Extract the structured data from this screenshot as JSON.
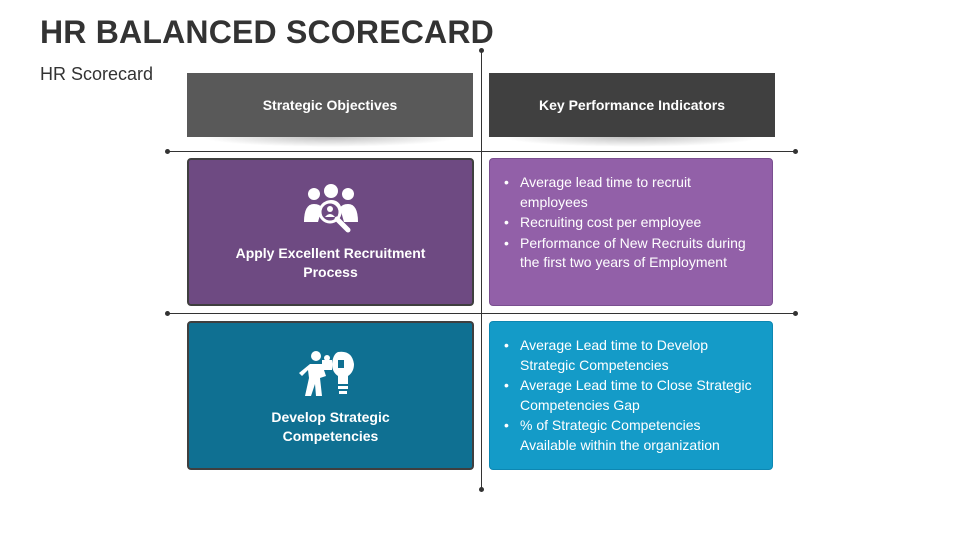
{
  "title": "HR BALANCED SCORECARD",
  "subtitle": "HR Scorecard",
  "headers": {
    "left": "Strategic Objectives",
    "right": "Key Performance Indicators"
  },
  "rows": [
    {
      "objective": "Apply Excellent Recruitment Process",
      "icon": "recruitment-search-icon",
      "kpis": [
        "Average lead time to recruit employees",
        "Recruiting cost per employee",
        "Performance of New Recruits during the first two years of Employment"
      ]
    },
    {
      "objective": "Develop Strategic Competencies",
      "icon": "puzzle-lightbulb-icon",
      "kpis": [
        "Average Lead time to Develop Strategic Competencies",
        "Average Lead time to Close Strategic Competencies Gap",
        "% of Strategic Competencies Available within the organization"
      ]
    }
  ],
  "colors": {
    "header_left": "#595959",
    "header_right": "#404040",
    "objective_1": "#6e4a82",
    "kpi_1": "#9260a8",
    "objective_2": "#0f7092",
    "kpi_2": "#149bc8"
  }
}
